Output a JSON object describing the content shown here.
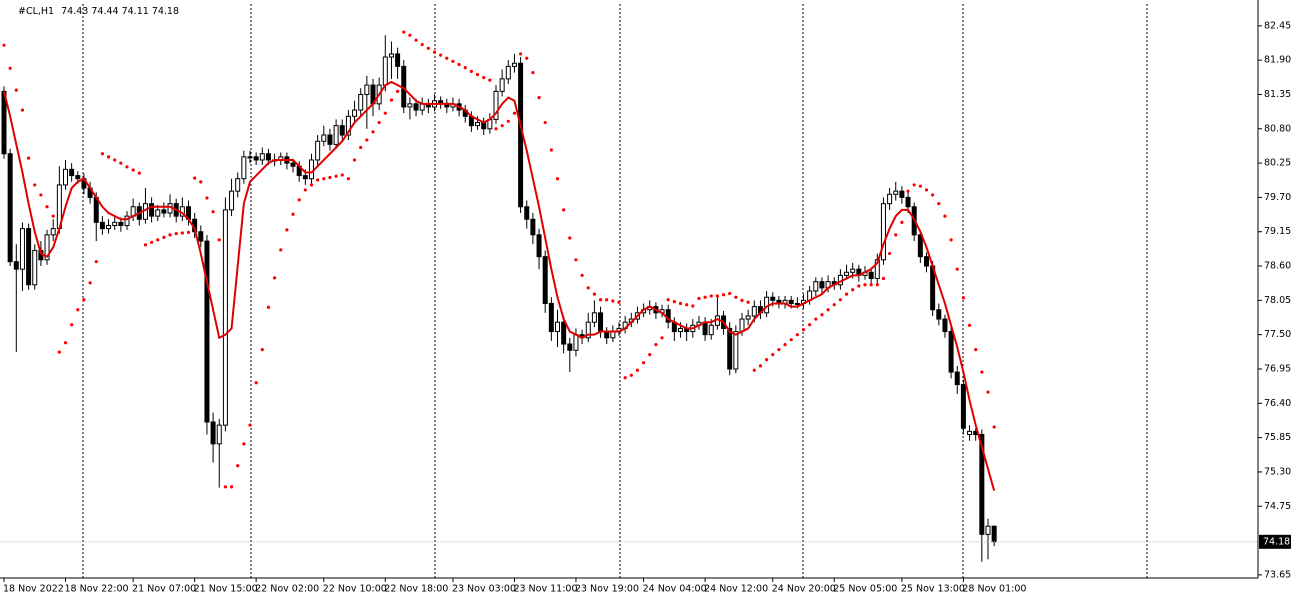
{
  "chart_data": {
    "type": "candlestick",
    "title": "#CL,H1",
    "ylim": [
      73.6,
      82.8
    ],
    "yticks": [
      82.45,
      {
        "value": 81.9,
        "label": "81.90"
      },
      81.35,
      {
        "value": 80.8,
        "label": "80.80"
      },
      80.25,
      {
        "value": 79.7,
        "label": "79.70"
      },
      79.15,
      {
        "value": 78.6,
        "label": "78.60"
      },
      78.05,
      {
        "value": 77.5,
        "label": "77.50"
      },
      76.95,
      {
        "value": 76.4,
        "label": "76.40"
      },
      75.85,
      {
        "value": 75.3,
        "label": "75.30"
      },
      74.75,
      73.65
    ],
    "up_color": "#ffffff",
    "down_color": "#000000",
    "ma_color": "#e00000",
    "sar_color": "#ff0000",
    "price_line_color": "#c0c0c0",
    "categories": [
      "18 Nov 2022",
      null,
      null,
      null,
      null,
      null,
      null,
      null,
      null,
      null,
      "18 Nov 22:00",
      null,
      null,
      null,
      null,
      null,
      null,
      null,
      null,
      null,
      null,
      "21 Nov 07:00",
      null,
      null,
      null,
      null,
      null,
      null,
      null,
      null,
      null,
      "21 Nov 15:00",
      null,
      null,
      null,
      null,
      null,
      null,
      null,
      null,
      null,
      "22 Nov 02:00",
      null,
      null,
      null,
      null,
      null,
      null,
      null,
      null,
      null,
      null,
      "22 Nov 10:00",
      null,
      null,
      null,
      null,
      null,
      null,
      null,
      null,
      null,
      "22 Nov 18:00",
      null,
      null,
      null,
      null,
      null,
      null,
      null,
      null,
      null,
      null,
      "23 Nov 03:00",
      null,
      null,
      null,
      null,
      null,
      null,
      null,
      null,
      null,
      "23 Nov 11:00",
      null,
      null,
      null,
      null,
      null,
      null,
      null,
      null,
      null,
      "23 Nov 19:00",
      null,
      null,
      null,
      null,
      null,
      null,
      null,
      null,
      null,
      null,
      "24 Nov 04:00",
      null,
      null,
      null,
      null,
      null,
      null,
      null,
      null,
      null,
      "24 Nov 12:00",
      null,
      null,
      null,
      null,
      null,
      null,
      null,
      null,
      null,
      null,
      "24 Nov 20:00",
      null,
      null,
      null,
      null,
      null,
      null,
      null,
      null,
      null,
      "25 Nov 05:00",
      null,
      null,
      null,
      null,
      null,
      null,
      null,
      null,
      null,
      null,
      "25 Nov 13:00",
      null,
      null,
      null,
      null,
      null,
      null,
      null,
      null,
      null,
      "28 Nov 01:00",
      null,
      null,
      null,
      null,
      null
    ],
    "ohlc": [
      [
        81.4,
        81.48,
        80.32,
        80.4
      ],
      [
        80.4,
        80.48,
        78.6,
        78.67
      ],
      [
        78.67,
        78.95,
        77.22,
        78.55
      ],
      [
        78.55,
        79.3,
        78.2,
        79.2
      ],
      [
        79.2,
        79.28,
        78.22,
        78.3
      ],
      [
        78.3,
        78.95,
        78.22,
        78.85
      ],
      [
        78.85,
        79.0,
        78.6,
        78.7
      ],
      [
        78.7,
        79.18,
        78.62,
        79.1
      ],
      [
        79.1,
        79.35,
        79.0,
        79.2
      ],
      [
        79.2,
        80.2,
        79.12,
        79.9
      ],
      [
        79.9,
        80.3,
        79.82,
        80.15
      ],
      [
        80.15,
        80.25,
        79.95,
        80.05
      ],
      [
        80.05,
        80.12,
        79.92,
        80.0
      ],
      [
        80.0,
        80.08,
        79.75,
        79.85
      ],
      [
        79.85,
        79.95,
        79.6,
        79.7
      ],
      [
        79.7,
        79.78,
        79.0,
        79.3
      ],
      [
        79.3,
        79.4,
        79.1,
        79.2
      ],
      [
        79.2,
        79.35,
        79.12,
        79.25
      ],
      [
        79.25,
        79.4,
        79.18,
        79.3
      ],
      [
        79.3,
        79.38,
        79.15,
        79.25
      ],
      [
        79.25,
        79.48,
        79.18,
        79.4
      ],
      [
        79.4,
        79.68,
        79.32,
        79.55
      ],
      [
        79.55,
        79.62,
        79.25,
        79.35
      ],
      [
        79.35,
        79.85,
        79.28,
        79.6
      ],
      [
        79.6,
        79.7,
        79.3,
        79.4
      ],
      [
        79.4,
        79.58,
        79.32,
        79.5
      ],
      [
        79.5,
        79.62,
        79.38,
        79.45
      ],
      [
        79.45,
        79.75,
        79.38,
        79.6
      ],
      [
        79.6,
        79.68,
        79.3,
        79.4
      ],
      [
        79.4,
        79.7,
        79.32,
        79.55
      ],
      [
        79.55,
        79.65,
        79.25,
        79.35
      ],
      [
        79.35,
        79.45,
        79.05,
        79.15
      ],
      [
        79.15,
        79.25,
        78.9,
        79.0
      ],
      [
        79.0,
        79.1,
        75.9,
        76.1
      ],
      [
        76.1,
        76.25,
        75.45,
        75.75
      ],
      [
        75.75,
        76.15,
        75.05,
        76.05
      ],
      [
        76.05,
        79.7,
        75.95,
        79.5
      ],
      [
        79.5,
        80.0,
        79.4,
        79.8
      ],
      [
        79.8,
        80.1,
        79.7,
        80.0
      ],
      [
        80.0,
        80.45,
        79.92,
        80.35
      ],
      [
        80.35,
        80.45,
        80.25,
        80.35
      ],
      [
        80.35,
        80.42,
        80.22,
        80.3
      ],
      [
        80.3,
        80.5,
        80.22,
        80.4
      ],
      [
        80.4,
        80.48,
        80.22,
        80.3
      ],
      [
        80.3,
        80.4,
        80.2,
        80.3
      ],
      [
        80.3,
        80.42,
        80.22,
        80.35
      ],
      [
        80.35,
        80.42,
        80.15,
        80.25
      ],
      [
        80.25,
        80.32,
        80.1,
        80.2
      ],
      [
        80.2,
        80.28,
        79.95,
        80.05
      ],
      [
        80.05,
        80.15,
        79.9,
        80.0
      ],
      [
        80.0,
        80.4,
        79.92,
        80.3
      ],
      [
        80.3,
        80.7,
        80.22,
        80.6
      ],
      [
        80.6,
        80.85,
        80.52,
        80.7
      ],
      [
        80.7,
        80.8,
        80.45,
        80.55
      ],
      [
        80.55,
        80.95,
        80.48,
        80.85
      ],
      [
        80.85,
        80.95,
        80.6,
        80.7
      ],
      [
        80.7,
        81.1,
        80.62,
        81.0
      ],
      [
        81.0,
        81.25,
        80.9,
        81.1
      ],
      [
        81.1,
        81.45,
        81.0,
        81.35
      ],
      [
        81.35,
        81.65,
        80.8,
        81.5
      ],
      [
        81.5,
        81.6,
        81.0,
        81.2
      ],
      [
        81.2,
        81.62,
        81.1,
        81.5
      ],
      [
        81.5,
        82.3,
        81.4,
        81.95
      ],
      [
        81.95,
        82.2,
        81.6,
        82.0
      ],
      [
        82.0,
        82.1,
        81.6,
        81.8
      ],
      [
        81.8,
        81.9,
        81.05,
        81.15
      ],
      [
        81.15,
        81.3,
        80.95,
        81.2
      ],
      [
        81.2,
        81.28,
        81.0,
        81.1
      ],
      [
        81.1,
        81.3,
        81.02,
        81.2
      ],
      [
        81.2,
        81.28,
        81.05,
        81.15
      ],
      [
        81.15,
        81.35,
        81.08,
        81.25
      ],
      [
        81.25,
        81.32,
        81.12,
        81.2
      ],
      [
        81.2,
        81.28,
        81.05,
        81.15
      ],
      [
        81.15,
        81.3,
        81.08,
        81.2
      ],
      [
        81.2,
        81.28,
        81.0,
        81.1
      ],
      [
        81.1,
        81.18,
        80.9,
        81.0
      ],
      [
        81.0,
        81.08,
        80.75,
        80.85
      ],
      [
        80.85,
        81.0,
        80.78,
        80.9
      ],
      [
        80.9,
        80.98,
        80.7,
        80.8
      ],
      [
        80.8,
        81.05,
        80.72,
        80.95
      ],
      [
        80.95,
        81.5,
        80.88,
        81.4
      ],
      [
        81.4,
        81.75,
        81.32,
        81.6
      ],
      [
        81.6,
        81.9,
        81.52,
        81.8
      ],
      [
        81.8,
        82.0,
        81.7,
        81.85
      ],
      [
        81.85,
        81.95,
        79.45,
        79.55
      ],
      [
        79.55,
        79.65,
        79.2,
        79.35
      ],
      [
        79.35,
        79.45,
        78.95,
        79.1
      ],
      [
        79.1,
        79.2,
        78.55,
        78.75
      ],
      [
        78.75,
        78.85,
        77.85,
        78.0
      ],
      [
        78.0,
        78.1,
        77.4,
        77.55
      ],
      [
        77.55,
        77.9,
        77.3,
        77.7
      ],
      [
        77.7,
        77.8,
        77.2,
        77.35
      ],
      [
        77.35,
        77.45,
        76.9,
        77.25
      ],
      [
        77.25,
        77.6,
        77.15,
        77.5
      ],
      [
        77.5,
        77.58,
        77.35,
        77.45
      ],
      [
        77.45,
        77.85,
        77.38,
        77.7
      ],
      [
        77.7,
        78.05,
        77.62,
        77.85
      ],
      [
        77.85,
        77.95,
        77.45,
        77.55
      ],
      [
        77.55,
        77.62,
        77.35,
        77.45
      ],
      [
        77.45,
        77.65,
        77.38,
        77.55
      ],
      [
        77.55,
        77.7,
        77.48,
        77.6
      ],
      [
        77.6,
        77.8,
        77.52,
        77.7
      ],
      [
        77.7,
        77.85,
        77.62,
        77.75
      ],
      [
        77.75,
        77.95,
        77.68,
        77.85
      ],
      [
        77.85,
        78.0,
        77.78,
        77.9
      ],
      [
        77.9,
        78.05,
        77.82,
        77.95
      ],
      [
        77.95,
        78.02,
        77.75,
        77.85
      ],
      [
        77.85,
        77.98,
        77.78,
        77.9
      ],
      [
        77.9,
        77.98,
        77.6,
        77.7
      ],
      [
        77.7,
        77.78,
        77.4,
        77.55
      ],
      [
        77.55,
        77.7,
        77.45,
        77.6
      ],
      [
        77.6,
        77.68,
        77.4,
        77.55
      ],
      [
        77.55,
        77.75,
        77.45,
        77.65
      ],
      [
        77.65,
        77.8,
        77.58,
        77.7
      ],
      [
        77.7,
        77.78,
        77.4,
        77.5
      ],
      [
        77.5,
        77.75,
        77.42,
        77.65
      ],
      [
        77.65,
        78.1,
        77.58,
        77.8
      ],
      [
        77.8,
        77.88,
        77.5,
        77.6
      ],
      [
        77.6,
        77.7,
        76.85,
        76.95
      ],
      [
        76.95,
        77.65,
        76.88,
        77.55
      ],
      [
        77.55,
        77.85,
        77.48,
        77.75
      ],
      [
        77.75,
        77.9,
        77.65,
        77.8
      ],
      [
        77.8,
        78.05,
        77.7,
        77.95
      ],
      [
        77.95,
        78.05,
        77.75,
        77.85
      ],
      [
        77.85,
        78.2,
        77.78,
        78.1
      ],
      [
        78.1,
        78.18,
        77.95,
        78.05
      ],
      [
        78.05,
        78.12,
        77.92,
        78.0
      ],
      [
        78.0,
        78.12,
        77.92,
        78.05
      ],
      [
        78.05,
        78.12,
        77.92,
        78.0
      ],
      [
        78.0,
        78.1,
        77.92,
        78.0
      ],
      [
        78.0,
        78.15,
        77.92,
        78.05
      ],
      [
        78.05,
        78.28,
        77.98,
        78.2
      ],
      [
        78.2,
        78.42,
        78.12,
        78.35
      ],
      [
        78.35,
        78.42,
        78.15,
        78.25
      ],
      [
        78.25,
        78.45,
        78.18,
        78.35
      ],
      [
        78.35,
        78.42,
        78.22,
        78.3
      ],
      [
        78.3,
        78.55,
        78.22,
        78.45
      ],
      [
        78.45,
        78.62,
        78.38,
        78.5
      ],
      [
        78.5,
        78.65,
        78.4,
        78.55
      ],
      [
        78.55,
        78.62,
        78.35,
        78.45
      ],
      [
        78.45,
        78.6,
        78.38,
        78.5
      ],
      [
        78.5,
        78.58,
        78.32,
        78.4
      ],
      [
        78.4,
        78.8,
        78.32,
        78.7
      ],
      [
        78.7,
        79.7,
        78.62,
        79.6
      ],
      [
        79.6,
        79.85,
        79.5,
        79.75
      ],
      [
        79.75,
        79.95,
        79.65,
        79.8
      ],
      [
        79.8,
        79.88,
        79.6,
        79.7
      ],
      [
        79.7,
        79.78,
        79.45,
        79.55
      ],
      [
        79.55,
        79.62,
        79.0,
        79.1
      ],
      [
        79.1,
        79.18,
        78.65,
        78.75
      ],
      [
        78.75,
        78.82,
        78.5,
        78.6
      ],
      [
        78.6,
        78.68,
        77.8,
        77.9
      ],
      [
        77.9,
        78.0,
        77.65,
        77.75
      ],
      [
        77.75,
        77.82,
        77.45,
        77.55
      ],
      [
        77.55,
        77.62,
        76.8,
        76.9
      ],
      [
        76.9,
        77.0,
        76.55,
        76.7
      ],
      [
        76.7,
        76.78,
        75.9,
        76.0
      ],
      [
        75.9,
        76.05,
        75.8,
        75.95
      ],
      [
        75.95,
        76.0,
        75.8,
        75.9
      ],
      [
        75.9,
        75.98,
        73.86,
        74.3
      ],
      [
        74.3,
        74.55,
        73.9,
        74.43
      ],
      [
        74.43,
        74.44,
        74.11,
        74.18
      ]
    ],
    "ma": [
      81.4,
      81.0,
      80.55,
      80.1,
      79.6,
      79.15,
      78.8,
      78.75,
      78.9,
      79.2,
      79.55,
      79.85,
      79.95,
      80.0,
      79.85,
      79.7,
      79.55,
      79.45,
      79.4,
      79.35,
      79.35,
      79.4,
      79.45,
      79.5,
      79.55,
      79.55,
      79.55,
      79.55,
      79.5,
      79.45,
      79.35,
      79.2,
      78.8,
      78.35,
      77.9,
      77.45,
      77.5,
      77.6,
      78.6,
      79.6,
      79.95,
      80.05,
      80.15,
      80.25,
      80.3,
      80.3,
      80.3,
      80.3,
      80.2,
      80.1,
      80.1,
      80.2,
      80.3,
      80.4,
      80.5,
      80.6,
      80.75,
      80.9,
      81.0,
      81.1,
      81.2,
      81.35,
      81.5,
      81.55,
      81.5,
      81.45,
      81.35,
      81.25,
      81.2,
      81.2,
      81.2,
      81.2,
      81.2,
      81.2,
      81.15,
      81.1,
      81.0,
      80.95,
      80.9,
      80.95,
      81.05,
      81.2,
      81.3,
      81.25,
      80.85,
      80.45,
      80.0,
      79.55,
      79.05,
      78.55,
      78.1,
      77.75,
      77.55,
      77.5,
      77.45,
      77.5,
      77.5,
      77.55,
      77.55,
      77.55,
      77.55,
      77.6,
      77.7,
      77.8,
      77.9,
      77.95,
      77.9,
      77.85,
      77.75,
      77.7,
      77.65,
      77.6,
      77.6,
      77.65,
      77.7,
      77.7,
      77.75,
      77.7,
      77.55,
      77.5,
      77.55,
      77.6,
      77.75,
      77.85,
      77.95,
      78.0,
      78.0,
      78.0,
      77.95,
      77.95,
      78.0,
      78.05,
      78.1,
      78.15,
      78.25,
      78.3,
      78.35,
      78.4,
      78.45,
      78.45,
      78.5,
      78.55,
      78.65,
      78.95,
      79.2,
      79.4,
      79.5,
      79.5,
      79.35,
      79.15,
      78.9,
      78.6,
      78.3,
      78.0,
      77.65,
      77.3,
      76.9,
      76.45,
      76.05,
      75.7,
      75.35,
      75.0
    ],
    "sar": [
      82.14,
      81.77,
      81.42,
      81.1,
      80.33,
      79.9,
      79.74,
      79.55,
      79.4,
      77.22,
      77.37,
      77.66,
      77.9,
      78.06,
      78.33,
      78.67,
      80.4,
      80.35,
      80.3,
      80.25,
      80.19,
      80.14,
      80.09,
      78.94,
      78.98,
      79.02,
      79.06,
      79.1,
      79.12,
      79.13,
      79.14,
      80.01,
      79.95,
      79.69,
      79.47,
      79.02,
      75.06,
      75.06,
      75.4,
      75.75,
      76.05,
      76.73,
      77.26,
      77.94,
      78.41,
      78.86,
      79.18,
      79.43,
      79.66,
      79.82,
      79.9,
      79.98,
      80.0,
      80.02,
      80.04,
      80.06,
      80.0,
      80.3,
      80.5,
      80.62,
      80.75,
      80.9,
      81.05,
      81.26,
      81.4,
      82.35,
      82.3,
      82.22,
      82.15,
      82.09,
      82.03,
      81.98,
      81.93,
      81.88,
      81.83,
      81.78,
      81.72,
      81.67,
      81.62,
      81.58,
      80.8,
      80.85,
      80.92,
      81.05,
      82.0,
      81.93,
      81.7,
      81.3,
      80.9,
      80.46,
      80.0,
      79.5,
      79.05,
      78.7,
      78.45,
      78.25,
      78.15,
      78.06,
      78.06,
      78.04,
      78.02,
      76.81,
      76.85,
      76.93,
      77.05,
      77.18,
      77.34,
      77.45,
      78.06,
      78.03,
      78.0,
      77.98,
      77.96,
      78.08,
      78.1,
      78.12,
      78.12,
      78.14,
      78.16,
      78.1,
      78.05,
      78.02,
      76.93,
      77.0,
      77.1,
      77.18,
      77.26,
      77.34,
      77.42,
      77.5,
      77.58,
      77.66,
      77.75,
      77.82,
      77.9,
      77.98,
      78.06,
      78.15,
      78.22,
      78.28,
      78.3,
      78.3,
      78.3,
      78.4,
      78.8,
      79.1,
      79.3,
      79.8,
      79.9,
      79.88,
      79.82,
      79.74,
      79.6,
      79.4,
      79.02,
      78.55,
      78.09,
      77.65,
      77.26,
      76.9,
      76.58,
      76.02
    ]
  }
}
